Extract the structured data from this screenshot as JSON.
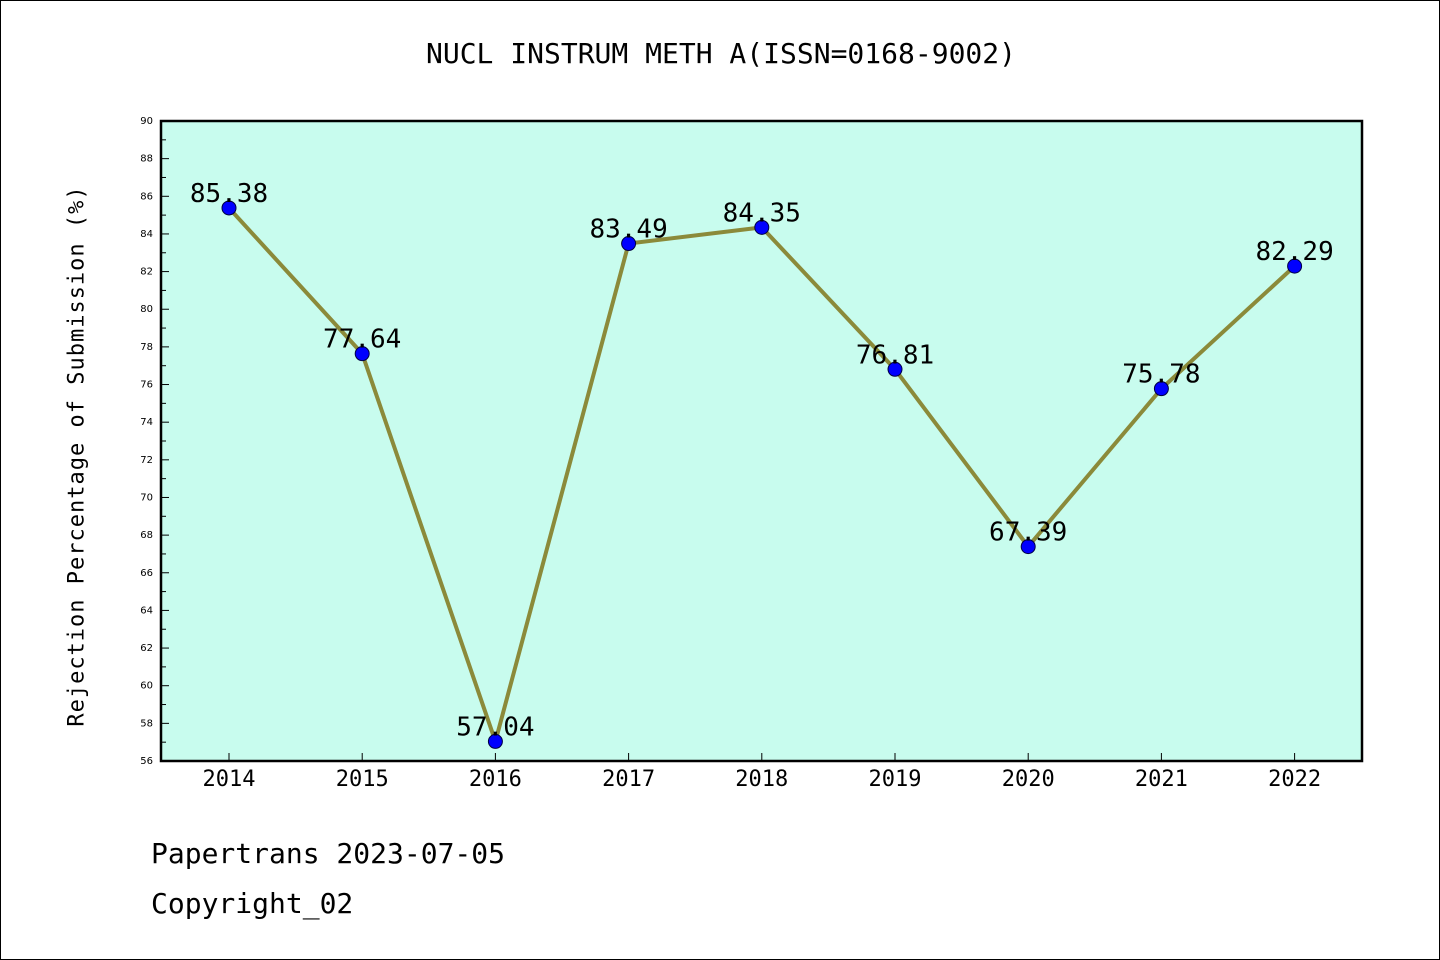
{
  "chart_data": {
    "type": "line",
    "title": "NUCL INSTRUM METH A(ISSN=0168-9002)",
    "xlabel": "",
    "ylabel": "Rejection Percentage of Submission (%)",
    "categories": [
      "2014",
      "2015",
      "2016",
      "2017",
      "2018",
      "2019",
      "2020",
      "2021",
      "2022"
    ],
    "series": [
      {
        "values": [
          85.38,
          77.64,
          57.04,
          83.49,
          84.35,
          76.81,
          67.39,
          75.78,
          82.29
        ],
        "data_labels": [
          "85.38",
          "77.64",
          "57.04",
          "83.49",
          "84.35",
          "76.81",
          "67.39",
          "75.78",
          "82.29"
        ],
        "line_color": "#8b8a3a",
        "marker_color": "#0000ff"
      }
    ],
    "ylim": [
      56,
      90
    ],
    "y_ticks": [
      "56",
      "58",
      "60",
      "62",
      "64",
      "66",
      "68",
      "70",
      "72",
      "74",
      "76",
      "78",
      "80",
      "82",
      "84",
      "86",
      "88",
      "90"
    ],
    "plot_background": "#c8fcee",
    "grid": false,
    "legend": "none"
  },
  "footer": {
    "line1": "Papertrans 2023-07-05",
    "line2": "Copyright_02"
  }
}
